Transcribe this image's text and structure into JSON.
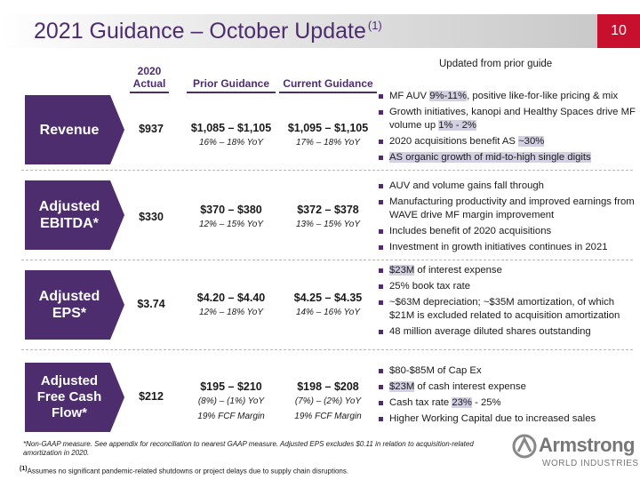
{
  "header": {
    "title": "2021 Guidance – October Update",
    "title_footnote": "(1)",
    "page_number": "10",
    "updated_label": "Updated from prior guide"
  },
  "columns": {
    "actual": "2020\nActual",
    "prior": "Prior Guidance",
    "current": "Current Guidance"
  },
  "rows": [
    {
      "label": "Revenue",
      "actual": "$937",
      "prior": {
        "range": "$1,085 – $1,105",
        "subs": [
          "16% – 18% YoY"
        ]
      },
      "current": {
        "range": "$1,095 – $1,105",
        "subs": [
          "17% – 18% YoY"
        ]
      },
      "bullets": [
        [
          {
            "t": "MF AUV "
          },
          {
            "t": "9%-11%",
            "hl": true
          },
          {
            "t": ", positive like-for-like pricing & mix"
          }
        ],
        [
          {
            "t": "Growth initiatives, kanopi and Healthy Spaces drive MF volume up "
          },
          {
            "t": "1% - 2%",
            "hl": true
          }
        ],
        [
          {
            "t": "2020 acquisitions benefit AS "
          },
          {
            "t": "~30%",
            "hl": true
          }
        ],
        [
          {
            "t": "AS organic growth of mid-to-high single digits",
            "hl": true
          }
        ]
      ]
    },
    {
      "label": "Adjusted\nEBITDA*",
      "actual": "$330",
      "prior": {
        "range": "$370 – $380",
        "subs": [
          "12% – 15% YoY"
        ]
      },
      "current": {
        "range": "$372 – $378",
        "subs": [
          "13% – 15% YoY"
        ]
      },
      "bullets": [
        [
          {
            "t": "AUV and volume gains fall through"
          }
        ],
        [
          {
            "t": "Manufacturing productivity and improved earnings from WAVE drive MF margin improvement"
          }
        ],
        [
          {
            "t": "Includes benefit of 2020 acquisitions"
          }
        ],
        [
          {
            "t": "Investment in growth initiatives continues in 2021"
          }
        ]
      ]
    },
    {
      "label": "Adjusted\nEPS*",
      "actual": "$3.74",
      "prior": {
        "range": "$4.20 – $4.40",
        "subs": [
          "12% – 18% YoY"
        ]
      },
      "current": {
        "range": "$4.25 – $4.35",
        "subs": [
          "14% – 16% YoY"
        ]
      },
      "bullets": [
        [
          {
            "t": "$23M",
            "hl": true
          },
          {
            "t": " of interest expense"
          }
        ],
        [
          {
            "t": "25% book tax rate"
          }
        ],
        [
          {
            "t": "~$63M depreciation; ~$35M amortization, of which $21M is excluded related to acquisition amortization"
          }
        ],
        [
          {
            "t": "48 million average diluted shares outstanding"
          }
        ]
      ]
    },
    {
      "label": "Adjusted\nFree Cash\nFlow*",
      "actual": "$212",
      "prior": {
        "range": "$195 – $210",
        "subs": [
          "(8%) – (1%) YoY",
          "19% FCF Margin"
        ]
      },
      "current": {
        "range": "$198 – $208",
        "subs": [
          "(7%) – (2%) YoY",
          "19% FCF Margin"
        ]
      },
      "bullets": [
        [
          {
            "t": "$80-$85M of Cap Ex"
          }
        ],
        [
          {
            "t": "$23M",
            "hl": true
          },
          {
            "t": " of cash interest expense"
          }
        ],
        [
          {
            "t": "Cash tax rate "
          },
          {
            "t": "23%",
            "hl": true
          },
          {
            "t": " - 25%"
          }
        ],
        [
          {
            "t": "Higher Working Capital due to increased sales"
          }
        ]
      ]
    }
  ],
  "footnotes": {
    "non_gaap": "*Non-GAAP measure. See appendix for reconciliation to nearest GAAP measure. Adjusted EPS excludes $0.11 in relation to acquisition-related amortization in 2020.",
    "note1_marker": "(1)",
    "note1": "Assumes no significant pandemic-related shutdowns or project delays due to supply chain disruptions."
  },
  "logo": {
    "word": "Armstrong",
    "sub": "WORLD INDUSTRIES"
  },
  "colors": {
    "brand_purple": "#4d2d6e",
    "accent_red": "#c8102e",
    "highlight": "#d4d0e3"
  }
}
